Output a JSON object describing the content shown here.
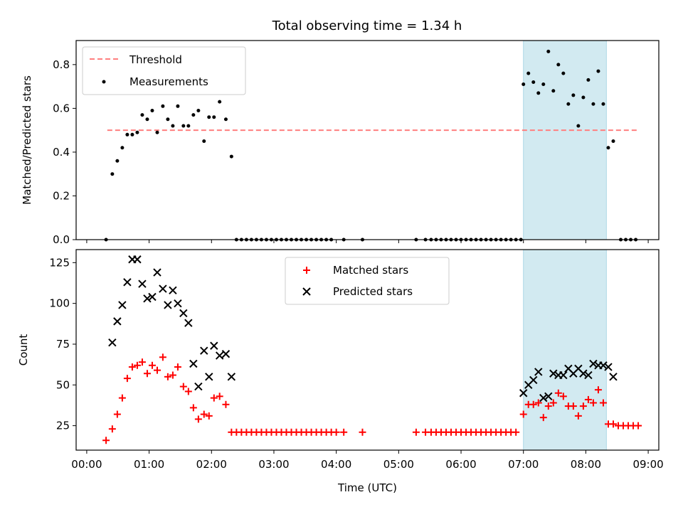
{
  "chart_data": [
    {
      "type": "scatter",
      "title": "Total observing time = 1.34 h",
      "xlabel": "",
      "ylabel": "Matched/Predicted stars",
      "xlim": [
        -0.17,
        9.17
      ],
      "ylim": [
        0.0,
        0.91
      ],
      "yticks": [
        0.0,
        0.2,
        0.4,
        0.6,
        0.8
      ],
      "ytick_labels": [
        "0.0",
        "0.2",
        "0.4",
        "0.6",
        "0.8"
      ],
      "xticks": [
        0,
        1,
        2,
        3,
        4,
        5,
        6,
        7,
        8,
        9
      ],
      "legend_position": "upper-left",
      "shaded_region": {
        "x": [
          7.0,
          8.33
        ],
        "color": "#add8e6"
      },
      "threshold": {
        "name": "Threshold",
        "value": 0.5,
        "x": [
          0.33,
          8.83
        ],
        "color": "#ff7f7f",
        "style": "dashed"
      },
      "series": [
        {
          "name": "Measurements",
          "color": "#000000",
          "marker": "dot",
          "points": [
            [
              0.31,
              0.0
            ],
            [
              0.41,
              0.3
            ],
            [
              0.49,
              0.36
            ],
            [
              0.57,
              0.42
            ],
            [
              0.65,
              0.48
            ],
            [
              0.73,
              0.48
            ],
            [
              0.81,
              0.49
            ],
            [
              0.89,
              0.57
            ],
            [
              0.97,
              0.55
            ],
            [
              1.05,
              0.59
            ],
            [
              1.13,
              0.49
            ],
            [
              1.22,
              0.61
            ],
            [
              1.3,
              0.55
            ],
            [
              1.38,
              0.52
            ],
            [
              1.46,
              0.61
            ],
            [
              1.55,
              0.52
            ],
            [
              1.63,
              0.52
            ],
            [
              1.71,
              0.57
            ],
            [
              1.79,
              0.59
            ],
            [
              1.88,
              0.45
            ],
            [
              1.96,
              0.56
            ],
            [
              2.04,
              0.56
            ],
            [
              2.13,
              0.63
            ],
            [
              2.23,
              0.55
            ],
            [
              2.32,
              0.38
            ],
            [
              2.4,
              0.0
            ],
            [
              2.48,
              0.0
            ],
            [
              2.56,
              0.0
            ],
            [
              2.64,
              0.0
            ],
            [
              2.72,
              0.0
            ],
            [
              2.8,
              0.0
            ],
            [
              2.88,
              0.0
            ],
            [
              2.96,
              0.0
            ],
            [
              3.04,
              0.0
            ],
            [
              3.12,
              0.0
            ],
            [
              3.2,
              0.0
            ],
            [
              3.28,
              0.0
            ],
            [
              3.36,
              0.0
            ],
            [
              3.44,
              0.0
            ],
            [
              3.52,
              0.0
            ],
            [
              3.6,
              0.0
            ],
            [
              3.68,
              0.0
            ],
            [
              3.76,
              0.0
            ],
            [
              3.84,
              0.0
            ],
            [
              3.92,
              0.0
            ],
            [
              4.12,
              0.0
            ],
            [
              4.42,
              0.0
            ],
            [
              5.28,
              0.0
            ],
            [
              5.43,
              0.0
            ],
            [
              5.52,
              0.0
            ],
            [
              5.6,
              0.0
            ],
            [
              5.68,
              0.0
            ],
            [
              5.76,
              0.0
            ],
            [
              5.84,
              0.0
            ],
            [
              5.92,
              0.0
            ],
            [
              6.0,
              0.0
            ],
            [
              6.08,
              0.0
            ],
            [
              6.16,
              0.0
            ],
            [
              6.24,
              0.0
            ],
            [
              6.32,
              0.0
            ],
            [
              6.4,
              0.0
            ],
            [
              6.48,
              0.0
            ],
            [
              6.56,
              0.0
            ],
            [
              6.64,
              0.0
            ],
            [
              6.72,
              0.0
            ],
            [
              6.8,
              0.0
            ],
            [
              6.88,
              0.0
            ],
            [
              6.96,
              0.0
            ],
            [
              7.0,
              0.71
            ],
            [
              7.08,
              0.76
            ],
            [
              7.16,
              0.72
            ],
            [
              7.24,
              0.67
            ],
            [
              7.32,
              0.71
            ],
            [
              7.4,
              0.86
            ],
            [
              7.48,
              0.68
            ],
            [
              7.56,
              0.8
            ],
            [
              7.64,
              0.76
            ],
            [
              7.72,
              0.62
            ],
            [
              7.8,
              0.66
            ],
            [
              7.88,
              0.52
            ],
            [
              7.96,
              0.65
            ],
            [
              8.04,
              0.73
            ],
            [
              8.12,
              0.62
            ],
            [
              8.2,
              0.77
            ],
            [
              8.28,
              0.62
            ],
            [
              8.36,
              0.42
            ],
            [
              8.44,
              0.45
            ],
            [
              8.56,
              0.0
            ],
            [
              8.64,
              0.0
            ],
            [
              8.72,
              0.0
            ],
            [
              8.8,
              0.0
            ]
          ]
        }
      ]
    },
    {
      "type": "scatter",
      "title": "",
      "xlabel": "Time (UTC)",
      "ylabel": "Count",
      "xlim": [
        -0.17,
        9.17
      ],
      "ylim": [
        10,
        133
      ],
      "yticks": [
        25,
        50,
        75,
        100,
        125
      ],
      "ytick_labels": [
        "25",
        "50",
        "75",
        "100",
        "125"
      ],
      "xticks": [
        0,
        1,
        2,
        3,
        4,
        5,
        6,
        7,
        8,
        9
      ],
      "xtick_labels": [
        "00:00",
        "01:00",
        "02:00",
        "03:00",
        "04:00",
        "05:00",
        "06:00",
        "07:00",
        "08:00",
        "09:00"
      ],
      "legend_position": "upper-center",
      "shaded_region": {
        "x": [
          7.0,
          8.33
        ],
        "color": "#add8e6"
      },
      "series": [
        {
          "name": "Matched stars",
          "color": "#ff0000",
          "marker": "plus",
          "points": [
            [
              0.31,
              16
            ],
            [
              0.41,
              23
            ],
            [
              0.49,
              32
            ],
            [
              0.57,
              42
            ],
            [
              0.65,
              54
            ],
            [
              0.73,
              61
            ],
            [
              0.81,
              62
            ],
            [
              0.89,
              64
            ],
            [
              0.97,
              57
            ],
            [
              1.05,
              62
            ],
            [
              1.13,
              59
            ],
            [
              1.22,
              67
            ],
            [
              1.3,
              55
            ],
            [
              1.38,
              56
            ],
            [
              1.46,
              61
            ],
            [
              1.55,
              49
            ],
            [
              1.63,
              46
            ],
            [
              1.71,
              36
            ],
            [
              1.79,
              29
            ],
            [
              1.88,
              32
            ],
            [
              1.96,
              31
            ],
            [
              2.04,
              42
            ],
            [
              2.13,
              43
            ],
            [
              2.23,
              38
            ],
            [
              2.32,
              21
            ],
            [
              2.4,
              21
            ],
            [
              2.48,
              21
            ],
            [
              2.56,
              21
            ],
            [
              2.64,
              21
            ],
            [
              2.72,
              21
            ],
            [
              2.8,
              21
            ],
            [
              2.88,
              21
            ],
            [
              2.96,
              21
            ],
            [
              3.04,
              21
            ],
            [
              3.12,
              21
            ],
            [
              3.2,
              21
            ],
            [
              3.28,
              21
            ],
            [
              3.36,
              21
            ],
            [
              3.44,
              21
            ],
            [
              3.52,
              21
            ],
            [
              3.6,
              21
            ],
            [
              3.68,
              21
            ],
            [
              3.76,
              21
            ],
            [
              3.84,
              21
            ],
            [
              3.92,
              21
            ],
            [
              4.0,
              21
            ],
            [
              4.12,
              21
            ],
            [
              4.42,
              21
            ],
            [
              5.28,
              21
            ],
            [
              5.43,
              21
            ],
            [
              5.52,
              21
            ],
            [
              5.6,
              21
            ],
            [
              5.68,
              21
            ],
            [
              5.76,
              21
            ],
            [
              5.84,
              21
            ],
            [
              5.92,
              21
            ],
            [
              6.0,
              21
            ],
            [
              6.08,
              21
            ],
            [
              6.16,
              21
            ],
            [
              6.24,
              21
            ],
            [
              6.32,
              21
            ],
            [
              6.4,
              21
            ],
            [
              6.48,
              21
            ],
            [
              6.56,
              21
            ],
            [
              6.64,
              21
            ],
            [
              6.72,
              21
            ],
            [
              6.8,
              21
            ],
            [
              6.88,
              21
            ],
            [
              7.0,
              32
            ],
            [
              7.08,
              38
            ],
            [
              7.16,
              38
            ],
            [
              7.24,
              39
            ],
            [
              7.32,
              30
            ],
            [
              7.4,
              37
            ],
            [
              7.48,
              39
            ],
            [
              7.56,
              45
            ],
            [
              7.64,
              43
            ],
            [
              7.72,
              37
            ],
            [
              7.8,
              37
            ],
            [
              7.88,
              31
            ],
            [
              7.96,
              37
            ],
            [
              8.04,
              41
            ],
            [
              8.12,
              39
            ],
            [
              8.2,
              47
            ],
            [
              8.28,
              39
            ],
            [
              8.36,
              26
            ],
            [
              8.44,
              26
            ],
            [
              8.52,
              25
            ],
            [
              8.6,
              25
            ],
            [
              8.68,
              25
            ],
            [
              8.76,
              25
            ],
            [
              8.84,
              25
            ]
          ]
        },
        {
          "name": "Predicted stars",
          "color": "#000000",
          "marker": "x",
          "points": [
            [
              0.41,
              76
            ],
            [
              0.49,
              89
            ],
            [
              0.57,
              99
            ],
            [
              0.65,
              113
            ],
            [
              0.73,
              127
            ],
            [
              0.81,
              127
            ],
            [
              0.89,
              112
            ],
            [
              0.97,
              103
            ],
            [
              1.05,
              104
            ],
            [
              1.13,
              119
            ],
            [
              1.22,
              109
            ],
            [
              1.3,
              99
            ],
            [
              1.38,
              108
            ],
            [
              1.46,
              100
            ],
            [
              1.55,
              94
            ],
            [
              1.63,
              88
            ],
            [
              1.71,
              63
            ],
            [
              1.79,
              49
            ],
            [
              1.88,
              71
            ],
            [
              1.96,
              55
            ],
            [
              2.04,
              74
            ],
            [
              2.13,
              68
            ],
            [
              2.23,
              69
            ],
            [
              2.32,
              55
            ],
            [
              7.0,
              45
            ],
            [
              7.08,
              50
            ],
            [
              7.16,
              53
            ],
            [
              7.24,
              58
            ],
            [
              7.32,
              42
            ],
            [
              7.4,
              43
            ],
            [
              7.48,
              57
            ],
            [
              7.56,
              56
            ],
            [
              7.64,
              56
            ],
            [
              7.72,
              60
            ],
            [
              7.8,
              57
            ],
            [
              7.88,
              60
            ],
            [
              7.96,
              57
            ],
            [
              8.04,
              56
            ],
            [
              8.12,
              63
            ],
            [
              8.2,
              62
            ],
            [
              8.28,
              62
            ],
            [
              8.36,
              61
            ],
            [
              8.44,
              55
            ]
          ]
        }
      ]
    }
  ]
}
